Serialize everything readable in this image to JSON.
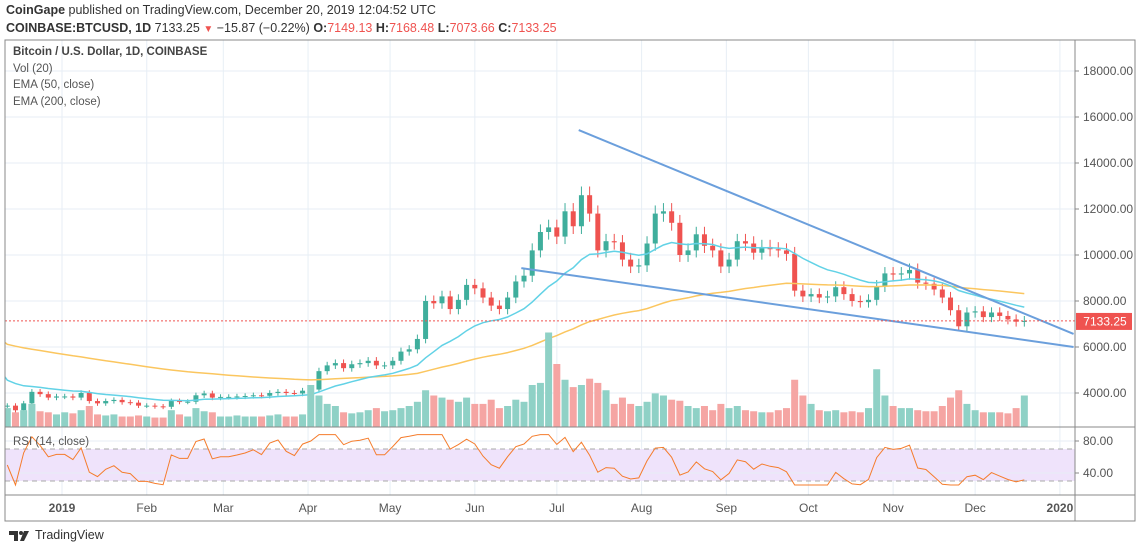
{
  "header": {
    "publisher": "CoinGape",
    "published_text": "published on TradingView.com, December 20, 2019 12:04:52 UTC",
    "symbol": "COINBASE:BTCUSD, 1D",
    "last": "7133.25",
    "change": "−15.87 (−0.22%)",
    "o_label": "O:",
    "o": "7149.13",
    "h_label": "H:",
    "h": "7168.48",
    "l_label": "L:",
    "l": "7073.66",
    "c_label": "C:",
    "c": "7133.25"
  },
  "legend": {
    "title": "Bitcoin / U.S. Dollar, 1D, COINBASE",
    "vol": "Vol (20)",
    "ema50": "EMA (50, close)",
    "ema200": "EMA (200, close)",
    "rsi": "RSI (14, close)"
  },
  "footer": {
    "brand": "TradingView"
  },
  "colors": {
    "up": "#3fae9c",
    "down": "#ef5350",
    "vol_up": "#8fd1c6",
    "vol_down": "#f5a5a3",
    "ema50": "#62d2e6",
    "ema200": "#fbc65f",
    "trend": "#6b9fdc",
    "rsi": "#f57c2c",
    "rsi_band": "#efe3fb",
    "grid": "#e7eef5"
  },
  "chart_data": {
    "type": "candlestick",
    "title": "Bitcoin / U.S. Dollar, 1D, COINBASE",
    "start_date": "2018-12-11",
    "step_days": 3,
    "close": [
      3450,
      3250,
      3550,
      4050,
      3950,
      3800,
      3850,
      3850,
      3800,
      4000,
      3650,
      3550,
      3650,
      3700,
      3600,
      3580,
      3450,
      3450,
      3420,
      3400,
      3650,
      3620,
      3620,
      3900,
      3980,
      3800,
      3830,
      3830,
      3850,
      3870,
      3900,
      3880,
      4000,
      4050,
      4000,
      3980,
      4100,
      4150,
      4950,
      5200,
      5300,
      5080,
      5250,
      5300,
      5400,
      5200,
      5200,
      5400,
      5800,
      5900,
      6350,
      8000,
      7900,
      8200,
      7650,
      8050,
      8700,
      8550,
      8150,
      7800,
      7650,
      8150,
      8850,
      9100,
      10200,
      11000,
      11200,
      10800,
      11900,
      11250,
      12600,
      11800,
      10200,
      10600,
      10550,
      9800,
      9500,
      9550,
      10500,
      11800,
      11900,
      11400,
      10000,
      10200,
      10900,
      10400,
      10200,
      9500,
      9800,
      10600,
      10500,
      10100,
      10350,
      10250,
      10200,
      10050,
      8450,
      8200,
      8300,
      8150,
      8200,
      8600,
      8300,
      8000,
      7950,
      8050,
      8650,
      9200,
      9150,
      9200,
      9350,
      8800,
      8750,
      8500,
      8150,
      7600,
      6900,
      7500,
      7550,
      7300,
      7500,
      7350,
      7200,
      7100,
      7133.25
    ],
    "volume": [
      18,
      14,
      16,
      22,
      15,
      14,
      12,
      14,
      13,
      16,
      20,
      12,
      11,
      12,
      10,
      10,
      11,
      10,
      9,
      9,
      16,
      12,
      10,
      18,
      15,
      14,
      10,
      10,
      11,
      10,
      10,
      10,
      11,
      12,
      10,
      10,
      12,
      40,
      30,
      22,
      20,
      14,
      13,
      14,
      16,
      18,
      15,
      16,
      18,
      20,
      24,
      35,
      30,
      28,
      26,
      24,
      28,
      22,
      22,
      26,
      18,
      20,
      26,
      24,
      40,
      42,
      90,
      60,
      45,
      38,
      40,
      46,
      42,
      35,
      22,
      28,
      22,
      20,
      24,
      32,
      30,
      26,
      25,
      20,
      18,
      20,
      16,
      22,
      18,
      20,
      16,
      15,
      14,
      14,
      16,
      18,
      45,
      30,
      22,
      16,
      15,
      16,
      14,
      15,
      14,
      18,
      55,
      30,
      20,
      18,
      18,
      16,
      15,
      15,
      20,
      28,
      35,
      22,
      16,
      14,
      14,
      14,
      13,
      18,
      30
    ],
    "ema50_seed": 4700,
    "ema200_seed": 6200,
    "last_price_label": "7133.25",
    "y_ticks": [
      "18000.00",
      "16000.00",
      "14000.00",
      "12000.00",
      "10000.00",
      "8000.00",
      "6000.00",
      "4000.00"
    ],
    "y_tick_values": [
      18000,
      16000,
      14000,
      12000,
      10000,
      8000,
      6000,
      4000
    ],
    "rsi_ticks": [
      "80.00",
      "40.00"
    ],
    "rsi_tick_values": [
      80,
      40
    ],
    "rsi_band": [
      30,
      70
    ],
    "x_ticks": [
      {
        "label": "2019",
        "date": "2019-01-01"
      },
      {
        "label": "Feb",
        "date": "2019-02-01"
      },
      {
        "label": "Mar",
        "date": "2019-03-01"
      },
      {
        "label": "Apr",
        "date": "2019-04-01"
      },
      {
        "label": "May",
        "date": "2019-05-01"
      },
      {
        "label": "Jun",
        "date": "2019-06-01"
      },
      {
        "label": "Jul",
        "date": "2019-07-01"
      },
      {
        "label": "Aug",
        "date": "2019-08-01"
      },
      {
        "label": "Sep",
        "date": "2019-09-01"
      },
      {
        "label": "Oct",
        "date": "2019-10-01"
      },
      {
        "label": "Nov",
        "date": "2019-11-01"
      },
      {
        "label": "Dec",
        "date": "2019-12-01"
      },
      {
        "label": "2020",
        "date": "2020-01-01"
      }
    ],
    "trendlines": [
      {
        "name": "upper",
        "from": [
          "2019-07-09",
          15430
        ],
        "to": [
          "2020-01-06",
          6570
        ]
      },
      {
        "name": "lower",
        "from": [
          "2019-06-18",
          9430
        ],
        "to": [
          "2020-01-06",
          6000
        ]
      }
    ]
  }
}
